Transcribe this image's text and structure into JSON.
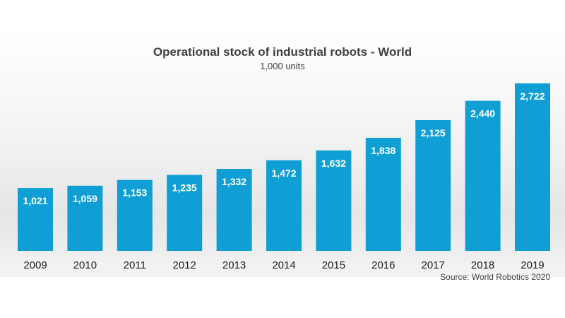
{
  "colors": {
    "bar": "#0f9fd4",
    "text": "#404040",
    "background_top": "#ffffff",
    "background_band": "#e8e8e8"
  },
  "chart_data": {
    "type": "bar",
    "title": "Operational stock of industrial robots - World",
    "subtitle": "1,000 units",
    "categories": [
      "2009",
      "2010",
      "2011",
      "2012",
      "2013",
      "2014",
      "2015",
      "2016",
      "2017",
      "2018",
      "2019"
    ],
    "values": [
      1021,
      1059,
      1153,
      1235,
      1332,
      1472,
      1632,
      1838,
      2125,
      2440,
      2722
    ],
    "value_labels": [
      "1,021",
      "1,059",
      "1,153",
      "1,235",
      "1,332",
      "1,472",
      "1,632",
      "1,838",
      "2,125",
      "2,440",
      "2,722"
    ],
    "ylim": [
      0,
      2722
    ],
    "grid": false,
    "legend": "none",
    "source": "Source: World Robotics 2020"
  }
}
